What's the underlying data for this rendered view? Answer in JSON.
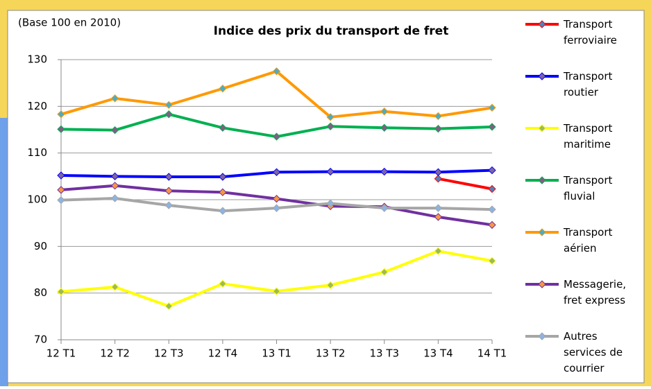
{
  "chart_data": {
    "type": "line",
    "title": "Indice des prix du transport de fret",
    "subtitle": "(Base 100 en 2010)",
    "categories": [
      "12 T1",
      "12 T2",
      "12 T3",
      "12 T4",
      "13 T1",
      "13 T2",
      "13 T3",
      "13 T4",
      "14 T1"
    ],
    "ylim": [
      70,
      130
    ],
    "yticks": [
      70,
      80,
      90,
      100,
      110,
      120,
      130
    ],
    "grid": true,
    "legend": "right",
    "series": [
      {
        "name": "Transport ferroviaire",
        "color": "#ff0000",
        "marker_color": "#4f81bd",
        "values": [
          null,
          null,
          null,
          null,
          null,
          null,
          null,
          104.5,
          102.3
        ]
      },
      {
        "name": "Transport routier",
        "color": "#0000ff",
        "marker_color": "#8064a2",
        "values": [
          105.2,
          105.0,
          104.9,
          104.9,
          105.9,
          106.0,
          106.0,
          105.9,
          106.3
        ]
      },
      {
        "name": "Transport maritime",
        "color": "#ffff00",
        "marker_color": "#9bbb59",
        "values": [
          80.3,
          81.3,
          77.2,
          82.0,
          80.4,
          81.7,
          84.5,
          89.0,
          86.9
        ]
      },
      {
        "name": "Transport fluvial",
        "color": "#00b050",
        "marker_color": "#7f6084",
        "values": [
          115.1,
          114.9,
          118.3,
          115.4,
          113.5,
          115.7,
          115.4,
          115.2,
          115.6
        ]
      },
      {
        "name": "Transport aérien",
        "color": "#ff9900",
        "marker_color": "#4bacc6",
        "values": [
          118.3,
          121.7,
          120.3,
          123.8,
          127.5,
          117.7,
          118.9,
          117.9,
          119.7
        ]
      },
      {
        "name": "Messagerie, fret express",
        "color": "#7030a0",
        "marker_color": "#f79646",
        "values": [
          102.1,
          103.0,
          101.9,
          101.6,
          100.2,
          98.6,
          98.5,
          96.3,
          94.6
        ]
      },
      {
        "name": "Autres services de courrier",
        "color": "#a6a6a6",
        "marker_color": "#8db3e2",
        "values": [
          99.9,
          100.3,
          98.8,
          97.6,
          98.2,
          99.2,
          98.2,
          98.2,
          97.9
        ]
      }
    ]
  }
}
